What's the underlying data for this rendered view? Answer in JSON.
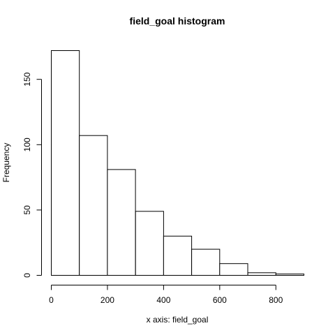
{
  "chart_data": {
    "type": "bar",
    "title": "field_goal histogram",
    "xlabel": "x axis: field_goal",
    "ylabel": "Frequency",
    "bin_edges": [
      0,
      100,
      200,
      300,
      400,
      500,
      600,
      700,
      800,
      900
    ],
    "values": [
      172,
      107,
      81,
      49,
      30,
      20,
      9,
      2,
      1
    ],
    "xlim": [
      0,
      900
    ],
    "ylim": [
      0,
      172
    ],
    "x_ticks": [
      0,
      200,
      400,
      600,
      800
    ],
    "y_ticks": [
      0,
      50,
      100,
      150
    ],
    "x_tick_labels": [
      "0",
      "200",
      "400",
      "600",
      "800"
    ],
    "y_tick_labels": [
      "0",
      "50",
      "100",
      "150"
    ],
    "grid": false,
    "legend": "none"
  }
}
